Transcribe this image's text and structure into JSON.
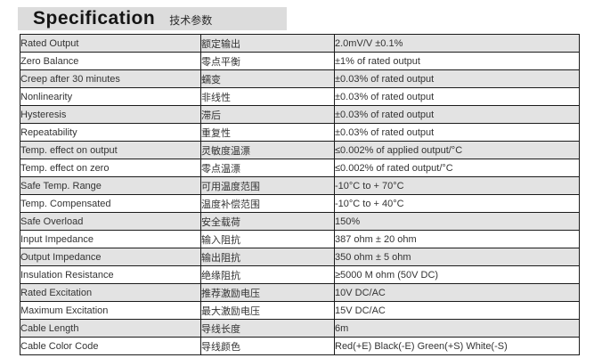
{
  "header": {
    "title": "Specification",
    "subtitle": "技术参数"
  },
  "colors": {
    "header_bar": "#dcdcdc",
    "row_alternate": "#e3e3e3",
    "row_plain": "#ffffff",
    "border": "#1b1b1b",
    "text": "#333333",
    "title_text": "#141414"
  },
  "table": {
    "rows": [
      {
        "en": "Rated Output",
        "zh": "额定输出",
        "value": "2.0mV/V ±0.1%"
      },
      {
        "en": "Zero Balance",
        "zh": "零点平衡",
        "value": "±1% of rated output"
      },
      {
        "en": "Creep after 30 minutes",
        "zh": "蠕变",
        "value": "±0.03% of rated output"
      },
      {
        "en": "Nonlinearity",
        "zh": "非线性",
        "value": "±0.03% of rated output"
      },
      {
        "en": "Hysteresis",
        "zh": "滞后",
        "value": "±0.03% of rated output"
      },
      {
        "en": "Repeatability",
        "zh": "重复性",
        "value": "±0.03% of rated output"
      },
      {
        "en": "Temp. effect on output",
        "zh": "灵敏度温漂",
        "value": "≤0.002% of applied output/°C"
      },
      {
        "en": "Temp. effect on zero",
        "zh": "零点温漂",
        "value": "≤0.002% of rated output/°C"
      },
      {
        "en": "Safe Temp. Range",
        "zh": "可用温度范围",
        "value": "-10°C to + 70°C"
      },
      {
        "en": "Temp. Compensated",
        "zh": "温度补偿范围",
        "value": "-10°C to + 40°C"
      },
      {
        "en": "Safe Overload",
        "zh": "安全载荷",
        "value": "150%"
      },
      {
        "en": "Input Impedance",
        "zh": "输入阻抗",
        "value": "387 ohm ± 20 ohm"
      },
      {
        "en": "Output Impedance",
        "zh": "输出阻抗",
        "value": "350 ohm ± 5 ohm"
      },
      {
        "en": "Insulation Resistance",
        "zh": "绝缘阻抗",
        "value": "≥5000 M ohm (50V DC)"
      },
      {
        "en": "Rated Excitation",
        "zh": "推荐激励电压",
        "value": "10V DC/AC"
      },
      {
        "en": "Maximum Excitation",
        "zh": "最大激励电压",
        "value": "15V DC/AC"
      },
      {
        "en": "Cable Length",
        "zh": "导线长度",
        "value": "6m"
      },
      {
        "en": "Cable Color Code",
        "zh": "导线颜色",
        "value": "Red(+E) Black(-E) Green(+S) White(-S)"
      }
    ]
  }
}
